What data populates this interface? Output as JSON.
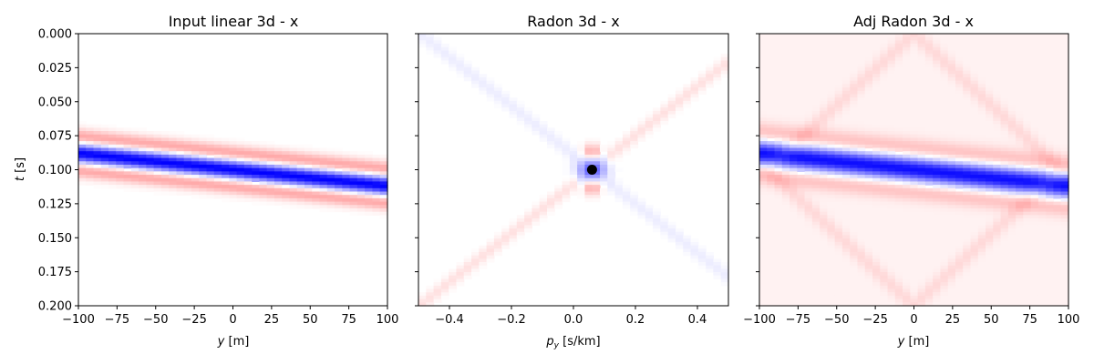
{
  "colors": {
    "negative": "#0000ff",
    "positive": "#ff0000",
    "neutral": "#ffffff",
    "marker": "#000000",
    "axis": "#000000"
  },
  "chart_data": [
    {
      "type": "heatmap",
      "title": "Input linear 3d - x",
      "xlabel": "y [m]",
      "xlabel_italic": "y",
      "xlabel_rest": " [m]",
      "ylabel": "t [s]",
      "ylabel_italic": "t",
      "ylabel_rest": " [s]",
      "xlim": [
        -100,
        100
      ],
      "ylim": [
        0.2,
        0.0
      ],
      "xticks": [
        "−100",
        "−75",
        "−50",
        "−25",
        "0",
        "25",
        "50",
        "75",
        "100"
      ],
      "xtick_values": [
        -100,
        -75,
        -50,
        -25,
        0,
        25,
        50,
        75,
        100
      ],
      "yticks": [
        "0.000",
        "0.025",
        "0.050",
        "0.075",
        "0.100",
        "0.125",
        "0.150",
        "0.175",
        "0.200"
      ],
      "ytick_values": [
        0.0,
        0.025,
        0.05,
        0.075,
        0.1,
        0.125,
        0.15,
        0.175,
        0.2
      ],
      "event": {
        "kind": "linear",
        "t0": 0.1,
        "slope_s_per_m": 0.00012,
        "negative_peak": -1.0,
        "side_lobe": 0.35
      },
      "grid": false
    },
    {
      "type": "heatmap",
      "title": "Radon 3d - x",
      "xlabel": "p_y [s/km]",
      "xlabel_italic": "p",
      "xlabel_sub": "y",
      "xlabel_rest": " [s/km]",
      "xlim": [
        -0.5,
        0.5
      ],
      "ylim": [
        0.2,
        0.0
      ],
      "xticks": [
        "−0.4",
        "−0.2",
        "0.0",
        "0.2",
        "0.4"
      ],
      "xtick_values": [
        -0.4,
        -0.2,
        0.0,
        0.2,
        0.4
      ],
      "yticks_labels_shown": false,
      "ytick_values": [
        0.0,
        0.025,
        0.05,
        0.075,
        0.1,
        0.125,
        0.15,
        0.175,
        0.2
      ],
      "focus_point": {
        "p": 0.06,
        "t": 0.1
      },
      "grid": false
    },
    {
      "type": "heatmap",
      "title": "Adj Radon 3d - x",
      "xlabel": "y [m]",
      "xlabel_italic": "y",
      "xlabel_rest": " [m]",
      "xlim": [
        -100,
        100
      ],
      "ylim": [
        0.2,
        0.0
      ],
      "xticks": [
        "−100",
        "−75",
        "−50",
        "−25",
        "0",
        "25",
        "50",
        "75",
        "100"
      ],
      "xtick_values": [
        -100,
        -75,
        -50,
        -25,
        0,
        25,
        50,
        75,
        100
      ],
      "yticks_labels_shown": false,
      "ytick_values": [
        0.0,
        0.025,
        0.05,
        0.075,
        0.1,
        0.125,
        0.15,
        0.175,
        0.2
      ],
      "event": {
        "kind": "linear",
        "t0": 0.1,
        "slope_s_per_m": 0.00012,
        "negative_peak": -1.0,
        "side_lobe": 0.2
      },
      "grid": false
    }
  ]
}
